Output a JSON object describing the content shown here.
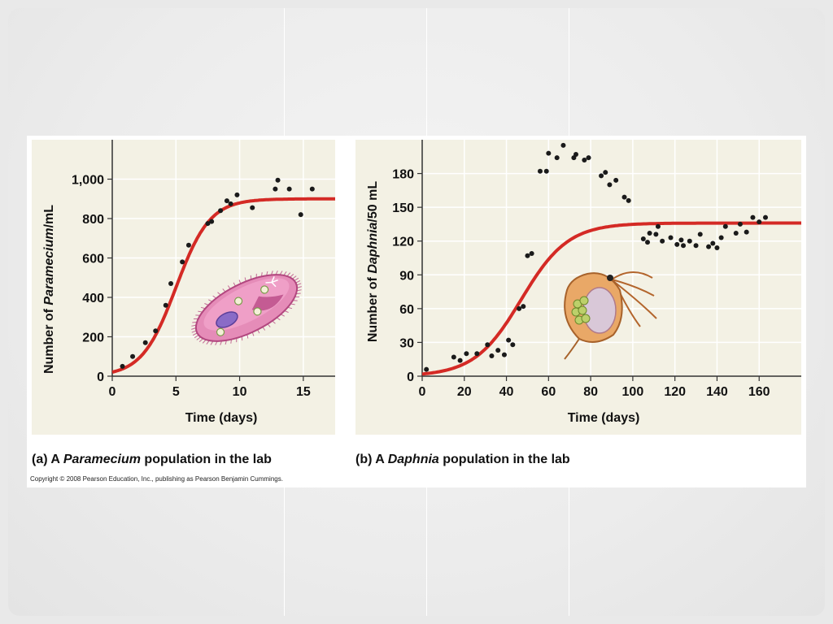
{
  "caption_a": {
    "prefix": "(a) A ",
    "italic": "Paramecium",
    "suffix": " population in the lab"
  },
  "caption_b": {
    "prefix": "(b) A ",
    "italic": "Daphnia",
    "suffix": " population in the lab"
  },
  "copyright": "Copyright © 2008 Pearson Education, Inc., publishing as Pearson Benjamin Cummings.",
  "colors": {
    "curve": "#d42a25",
    "points": "#1a1a1a",
    "panel": "#f3f1e4"
  },
  "chart_data": [
    {
      "type": "scatter",
      "xlabel": "Time (days)",
      "ylabel_parts": [
        "Number of ",
        "Paramecium",
        "/mL"
      ],
      "xlim": [
        0,
        17.5
      ],
      "ylim": [
        0,
        1200
      ],
      "xticks": [
        0,
        5,
        10,
        15
      ],
      "yticks": [
        0,
        200,
        400,
        600,
        800,
        1000
      ],
      "ytick_labels": [
        "0",
        "200",
        "400",
        "600",
        "800",
        "1,000"
      ],
      "grid": true,
      "curve": {
        "type": "logistic",
        "K": 900,
        "midpoint": 5,
        "rate": 0.75
      },
      "points": [
        [
          0.8,
          50
        ],
        [
          1.6,
          100
        ],
        [
          2.6,
          170
        ],
        [
          3.4,
          230
        ],
        [
          4.2,
          360
        ],
        [
          4.6,
          470
        ],
        [
          5.5,
          580
        ],
        [
          6,
          665
        ],
        [
          7.5,
          775
        ],
        [
          7.8,
          785
        ],
        [
          8.5,
          840
        ],
        [
          9,
          890
        ],
        [
          9.3,
          875
        ],
        [
          9.8,
          920
        ],
        [
          11,
          855
        ],
        [
          12.8,
          950
        ],
        [
          13,
          995
        ],
        [
          13.9,
          950
        ],
        [
          14.8,
          820
        ],
        [
          15.7,
          950
        ]
      ]
    },
    {
      "type": "scatter",
      "xlabel": "Time (days)",
      "ylabel_parts": [
        "Number of ",
        "Daphnia",
        "/50 mL"
      ],
      "xlim": [
        0,
        180
      ],
      "ylim": [
        0,
        210
      ],
      "xticks": [
        0,
        20,
        40,
        60,
        80,
        100,
        120,
        140,
        160
      ],
      "yticks": [
        0,
        30,
        60,
        90,
        120,
        150,
        180
      ],
      "ytick_labels": [
        "0",
        "30",
        "60",
        "90",
        "120",
        "150",
        "180"
      ],
      "grid": true,
      "curve": {
        "type": "logistic",
        "K": 136,
        "midpoint": 47,
        "rate": 0.09
      },
      "points": [
        [
          2,
          6
        ],
        [
          15,
          17
        ],
        [
          18,
          14
        ],
        [
          21,
          20
        ],
        [
          26,
          20
        ],
        [
          31,
          28
        ],
        [
          33,
          18
        ],
        [
          36,
          23
        ],
        [
          39,
          19
        ],
        [
          41,
          32
        ],
        [
          43,
          28
        ],
        [
          46,
          60
        ],
        [
          48,
          62
        ],
        [
          50,
          107
        ],
        [
          52,
          109
        ],
        [
          56,
          182
        ],
        [
          59,
          182
        ],
        [
          60,
          198
        ],
        [
          64,
          194
        ],
        [
          67,
          205
        ],
        [
          72,
          194
        ],
        [
          73,
          197
        ],
        [
          77,
          192
        ],
        [
          79,
          194
        ],
        [
          85,
          178
        ],
        [
          87,
          181
        ],
        [
          89,
          170
        ],
        [
          92,
          174
        ],
        [
          96,
          159
        ],
        [
          98,
          156
        ],
        [
          105,
          122
        ],
        [
          107,
          119
        ],
        [
          108,
          127
        ],
        [
          111,
          126
        ],
        [
          112,
          133
        ],
        [
          114,
          120
        ],
        [
          118,
          123
        ],
        [
          121,
          117
        ],
        [
          123,
          121
        ],
        [
          124,
          116
        ],
        [
          127,
          120
        ],
        [
          130,
          116
        ],
        [
          132,
          126
        ],
        [
          136,
          115
        ],
        [
          138,
          118
        ],
        [
          140,
          114
        ],
        [
          142,
          123
        ],
        [
          144,
          133
        ],
        [
          149,
          127
        ],
        [
          151,
          135
        ],
        [
          154,
          128
        ],
        [
          157,
          141
        ],
        [
          160,
          137
        ],
        [
          163,
          141
        ]
      ]
    }
  ]
}
